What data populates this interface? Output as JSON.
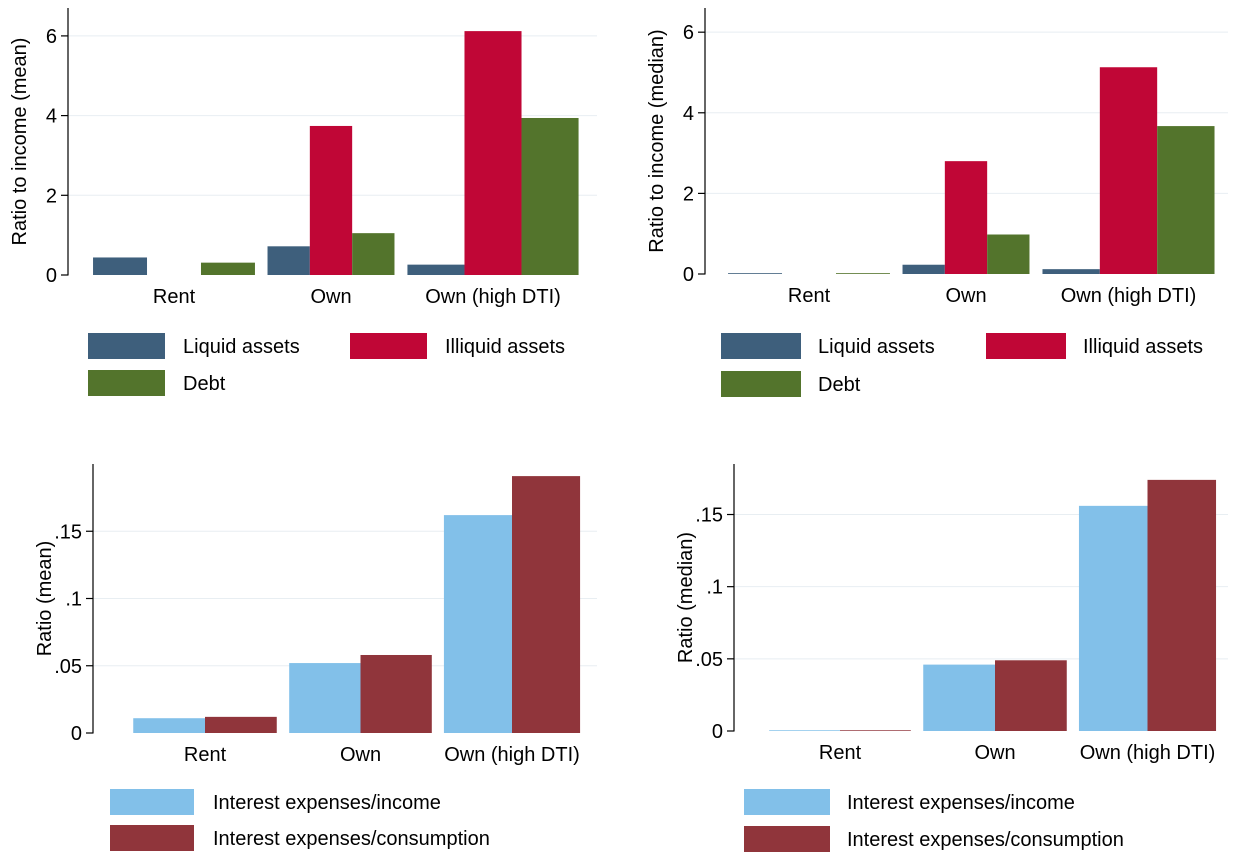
{
  "chart_data": [
    {
      "type": "bar",
      "categories": [
        "Rent",
        "Own",
        "Own (high DTI)"
      ],
      "ylabel": "Ratio to income (mean)",
      "ylim": [
        0,
        6.7
      ],
      "yticks": [
        0,
        2,
        4,
        6
      ],
      "ytick_labels": [
        "0",
        "2",
        "4",
        "6"
      ],
      "grid": true,
      "legend_placement": "bottom",
      "series": [
        {
          "name": "Liquid assets",
          "color": "#3e5f7c",
          "values": [
            0.44,
            0.72,
            0.26
          ]
        },
        {
          "name": "Illiquid assets",
          "color": "#c00636",
          "values": [
            0.0,
            3.74,
            6.12
          ]
        },
        {
          "name": "Debt",
          "color": "#53742c",
          "values": [
            0.31,
            1.05,
            3.94
          ]
        }
      ]
    },
    {
      "type": "bar",
      "categories": [
        "Rent",
        "Own",
        "Own (high DTI)"
      ],
      "ylabel": "Ratio to income (median)",
      "ylim": [
        0,
        6.6
      ],
      "yticks": [
        0,
        2,
        4,
        6
      ],
      "ytick_labels": [
        "0",
        "2",
        "4",
        "6"
      ],
      "grid": true,
      "legend_placement": "bottom",
      "series": [
        {
          "name": "Liquid assets",
          "color": "#3e5f7c",
          "values": [
            0.02,
            0.23,
            0.12
          ]
        },
        {
          "name": "Illiquid assets",
          "color": "#c00636",
          "values": [
            0.0,
            2.8,
            5.13
          ]
        },
        {
          "name": "Debt",
          "color": "#53742c",
          "values": [
            0.02,
            0.98,
            3.67
          ]
        }
      ]
    },
    {
      "type": "bar",
      "categories": [
        "Rent",
        "Own",
        "Own (high DTI)"
      ],
      "ylabel": "Ratio (mean)",
      "ylim": [
        0,
        0.2
      ],
      "yticks": [
        0,
        0.05,
        0.1,
        0.15
      ],
      "ytick_labels": [
        "0",
        ".05",
        ".1",
        ".15"
      ],
      "grid": true,
      "legend_placement": "bottom",
      "series": [
        {
          "name": "Interest expenses/income",
          "color": "#82c0e9",
          "values": [
            0.011,
            0.052,
            0.162
          ]
        },
        {
          "name": "Interest expenses/consumption",
          "color": "#90353b",
          "values": [
            0.012,
            0.058,
            0.191
          ]
        }
      ]
    },
    {
      "type": "bar",
      "categories": [
        "Rent",
        "Own",
        "Own (high DTI)"
      ],
      "ylabel": "Ratio (median)",
      "ylim": [
        0,
        0.185
      ],
      "yticks": [
        0,
        0.05,
        0.1,
        0.15
      ],
      "ytick_labels": [
        "0",
        ".05",
        ".1",
        ".15"
      ],
      "grid": true,
      "legend_placement": "bottom",
      "series": [
        {
          "name": "Interest expenses/income",
          "color": "#82c0e9",
          "values": [
            0.0005,
            0.046,
            0.156
          ]
        },
        {
          "name": "Interest expenses/consumption",
          "color": "#90353b",
          "values": [
            0.0005,
            0.049,
            0.174
          ]
        }
      ]
    }
  ]
}
